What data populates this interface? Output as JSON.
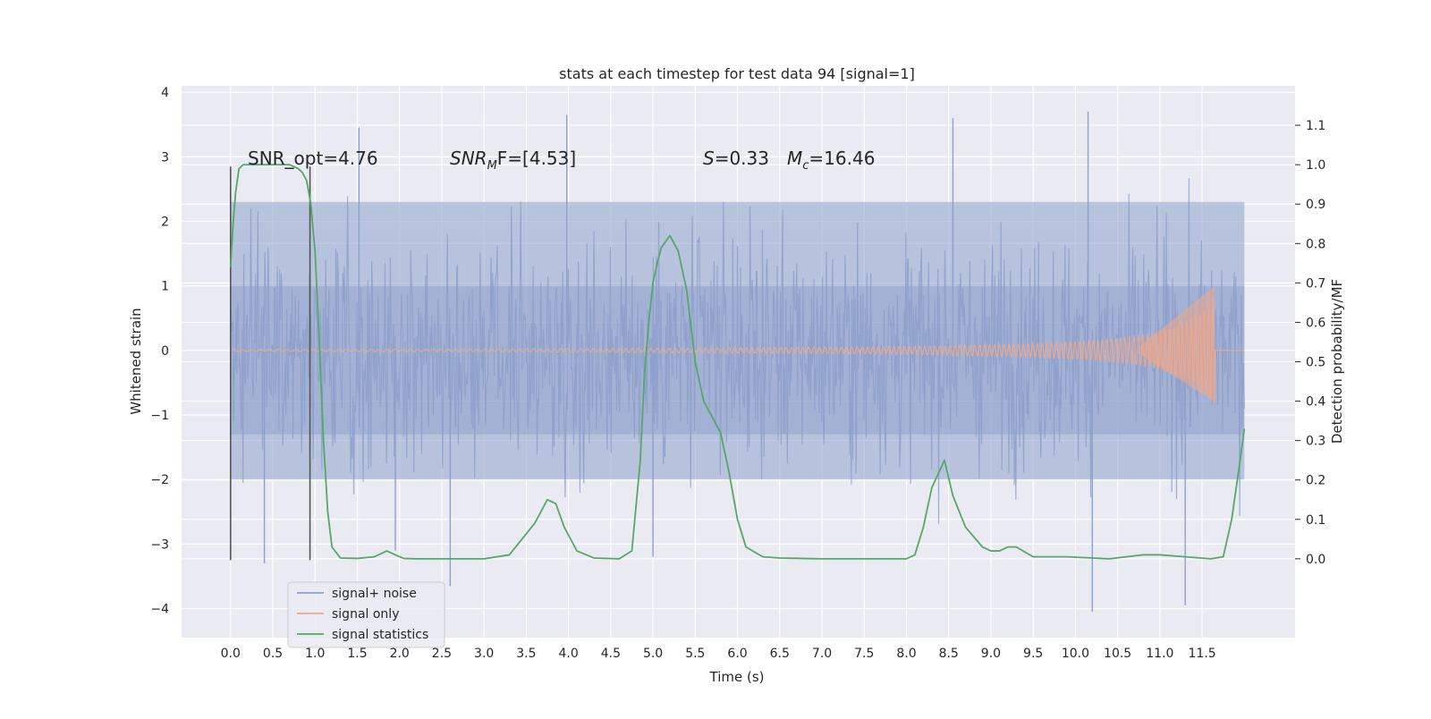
{
  "chart_data": {
    "type": "line",
    "title": "stats at each timestep for test data 94 [signal=1]",
    "xlabel": "Time (s)",
    "ylabel": "Whitened strain",
    "ylabel_right": "Detection probability/MF",
    "xlim": [
      -0.58,
      12.6
    ],
    "ylim": [
      -4.45,
      4.1
    ],
    "ylim_right": [
      -0.2,
      1.2
    ],
    "x_ticks": [
      0.0,
      0.5,
      1.0,
      1.5,
      2.0,
      2.5,
      3.0,
      3.5,
      4.0,
      4.5,
      5.0,
      5.5,
      6.0,
      6.5,
      7.0,
      7.5,
      8.0,
      8.5,
      9.0,
      9.5,
      10.0,
      10.5,
      11.0,
      11.5
    ],
    "x_tick_labels": [
      "0.0",
      "0.5",
      "1.0",
      "1.5",
      "2.0",
      "2.5",
      "3.0",
      "3.5",
      "4.0",
      "4.5",
      "5.0",
      "5.5",
      "6.0",
      "6.5",
      "7.0",
      "7.5",
      "8.0",
      "8.5",
      "9.0",
      "9.5",
      "10.0",
      "10.5",
      "11.0",
      "11.5"
    ],
    "y_ticks": [
      -4,
      -3,
      -2,
      -1,
      0,
      1,
      2,
      3,
      4
    ],
    "y_tick_labels": [
      "−4",
      "−3",
      "−2",
      "−1",
      "0",
      "1",
      "2",
      "3",
      "4"
    ],
    "y_ticks_right": [
      0.0,
      0.1,
      0.2,
      0.3,
      0.4,
      0.5,
      0.6,
      0.7,
      0.8,
      0.9,
      1.0,
      1.1
    ],
    "y_tick_labels_right": [
      "0.0",
      "0.1",
      "0.2",
      "0.3",
      "0.4",
      "0.5",
      "0.6",
      "0.7",
      "0.8",
      "0.9",
      "1.0",
      "1.1"
    ],
    "grid": true,
    "legend_position": "lower-left",
    "annotations": {
      "snr_opt": "SNR_opt=4.76",
      "snr_mf_prefix": "SNR",
      "snr_mf_sub": "M",
      "snr_mf_suffix": "F=[4.53]",
      "s_sym": "S",
      "s_val": "=0.33",
      "mc_sym": "M",
      "mc_sub": "c",
      "mc_val": "=16.46"
    },
    "vertical_markers": [
      0.0,
      0.94
    ],
    "series": [
      {
        "name": "signal+ noise",
        "color": "#8da0cb",
        "x_range": [
          0.0,
          12.0
        ],
        "envelope_typical": [
          -2.0,
          2.3
        ],
        "extremes": [
          {
            "x": 0.0,
            "y": 2.85
          },
          {
            "x": 0.0,
            "y": -3.25
          },
          {
            "x": 0.4,
            "y": -3.3
          },
          {
            "x": 1.52,
            "y": 3.45
          },
          {
            "x": 1.95,
            "y": -3.1
          },
          {
            "x": 2.6,
            "y": -3.65
          },
          {
            "x": 3.98,
            "y": 3.65
          },
          {
            "x": 5.0,
            "y": -3.2
          },
          {
            "x": 8.55,
            "y": 3.6
          },
          {
            "x": 10.15,
            "y": 3.7
          },
          {
            "x": 10.2,
            "y": -4.05
          },
          {
            "x": 11.3,
            "y": -3.95
          }
        ]
      },
      {
        "name": "signal only",
        "color": "#f0a88a",
        "x_range": [
          0.0,
          12.0
        ],
        "chirp_peak_time": 11.65,
        "chirp_peak_amplitude": [
          -0.8,
          1.0
        ]
      },
      {
        "name": "signal statistics",
        "color": "#55a868",
        "axis": "right",
        "x": [
          0.0,
          0.03,
          0.06,
          0.1,
          0.15,
          0.2,
          0.3,
          0.4,
          0.5,
          0.6,
          0.7,
          0.8,
          0.85,
          0.9,
          0.95,
          1.0,
          1.05,
          1.1,
          1.15,
          1.2,
          1.3,
          1.5,
          1.7,
          1.85,
          1.95,
          2.05,
          2.2,
          2.5,
          3.0,
          3.3,
          3.45,
          3.6,
          3.75,
          3.85,
          3.95,
          4.1,
          4.3,
          4.6,
          4.75,
          4.85,
          4.9,
          4.95,
          5.0,
          5.05,
          5.1,
          5.2,
          5.3,
          5.4,
          5.5,
          5.6,
          5.7,
          5.8,
          5.9,
          6.0,
          6.1,
          6.3,
          6.5,
          7.0,
          7.3,
          7.6,
          8.0,
          8.1,
          8.2,
          8.3,
          8.45,
          8.55,
          8.7,
          8.9,
          9.0,
          9.1,
          9.2,
          9.3,
          9.5,
          9.9,
          10.4,
          10.8,
          11.0,
          11.3,
          11.6,
          11.75,
          11.85,
          11.95,
          12.0
        ],
        "values": [
          0.74,
          0.85,
          0.93,
          0.99,
          1.0,
          1.0,
          1.0,
          1.0,
          1.0,
          1.0,
          1.0,
          0.99,
          0.98,
          0.96,
          0.9,
          0.78,
          0.55,
          0.3,
          0.12,
          0.03,
          0.002,
          0.001,
          0.005,
          0.02,
          0.01,
          0.001,
          0.0,
          0.0,
          0.0,
          0.01,
          0.05,
          0.09,
          0.15,
          0.14,
          0.08,
          0.02,
          0.002,
          0.0,
          0.02,
          0.25,
          0.47,
          0.6,
          0.7,
          0.75,
          0.79,
          0.82,
          0.78,
          0.68,
          0.5,
          0.4,
          0.36,
          0.32,
          0.22,
          0.1,
          0.03,
          0.005,
          0.002,
          0.0,
          0.0,
          0.0,
          0.0,
          0.01,
          0.08,
          0.18,
          0.25,
          0.16,
          0.08,
          0.03,
          0.02,
          0.02,
          0.03,
          0.03,
          0.005,
          0.005,
          0.0,
          0.01,
          0.01,
          0.005,
          0.0,
          0.005,
          0.1,
          0.25,
          0.33
        ]
      }
    ]
  }
}
